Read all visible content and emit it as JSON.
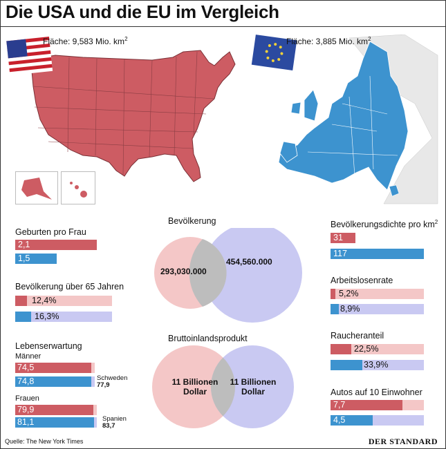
{
  "title": "Die USA und die EU im Vergleich",
  "usa_area_label": "Fläche: 9,583 Mio. km",
  "eu_area_label": "Fläche: 3,885 Mio. km",
  "area_unit_sup": "2",
  "colors": {
    "usa": "#cd5c63",
    "usa_light": "#f4c7c7",
    "eu": "#3d93cf",
    "eu_light": "#c9c9f2"
  },
  "chart_data": [
    {
      "type": "bar",
      "title": "Geburten pro Frau",
      "categories": [
        "USA",
        "EU"
      ],
      "values": [
        2.1,
        1.5
      ],
      "labels": [
        "2,1",
        "1,5"
      ],
      "ylim": [
        0,
        2.1
      ]
    },
    {
      "type": "bar",
      "title": "Bevölkerung über 65 Jahren",
      "categories": [
        "USA",
        "EU"
      ],
      "values": [
        12.4,
        16.3
      ],
      "labels": [
        "12,4%",
        "16,3%"
      ],
      "ylim": [
        0,
        100
      ]
    },
    {
      "type": "bar",
      "title": "Lebenserwartung",
      "subgroups": [
        {
          "name": "Männer",
          "categories": [
            "USA",
            "EU"
          ],
          "values": [
            74.5,
            74.8
          ],
          "labels": [
            "74,5",
            "74,8"
          ],
          "max_label": "Schweden",
          "max_value": "77,9",
          "max_num": 77.9
        },
        {
          "name": "Frauen",
          "categories": [
            "USA",
            "EU"
          ],
          "values": [
            79.9,
            81.1
          ],
          "labels": [
            "79,9",
            "81,1"
          ],
          "max_label": "Spanien",
          "max_value": "83,7",
          "max_num": 83.7
        }
      ]
    },
    {
      "type": "venn",
      "title": "Bevölkerung",
      "values": [
        293030000,
        454560000
      ],
      "labels": [
        "293,030.000",
        "454,560.000"
      ]
    },
    {
      "type": "venn",
      "title": "Bruttoinlandsprodukt",
      "labels": [
        "11 Billionen\nDollar",
        "11 Billionen\nDollar"
      ]
    },
    {
      "type": "bar",
      "title": "Bevölkerungsdichte pro km",
      "title_sup": "2",
      "categories": [
        "USA",
        "EU"
      ],
      "values": [
        31,
        117
      ],
      "labels": [
        "31",
        "117"
      ],
      "ylim": [
        0,
        117
      ]
    },
    {
      "type": "bar",
      "title": "Arbeitslosenrate",
      "categories": [
        "USA",
        "EU"
      ],
      "values": [
        5.2,
        8.9
      ],
      "labels": [
        "5,2%",
        "8,9%"
      ],
      "ylim": [
        0,
        100
      ]
    },
    {
      "type": "bar",
      "title": "Raucheranteil",
      "categories": [
        "USA",
        "EU"
      ],
      "values": [
        22.5,
        33.9
      ],
      "labels": [
        "22,5%",
        "33,9%"
      ],
      "ylim": [
        0,
        100
      ]
    },
    {
      "type": "bar",
      "title": "Autos auf 10 Einwohner",
      "categories": [
        "USA",
        "EU"
      ],
      "values": [
        7.7,
        4.5
      ],
      "labels": [
        "7,7",
        "4,5"
      ],
      "ylim": [
        0,
        10
      ]
    }
  ],
  "source": "Quelle: The New York Times",
  "logo": "DER STANDARD"
}
